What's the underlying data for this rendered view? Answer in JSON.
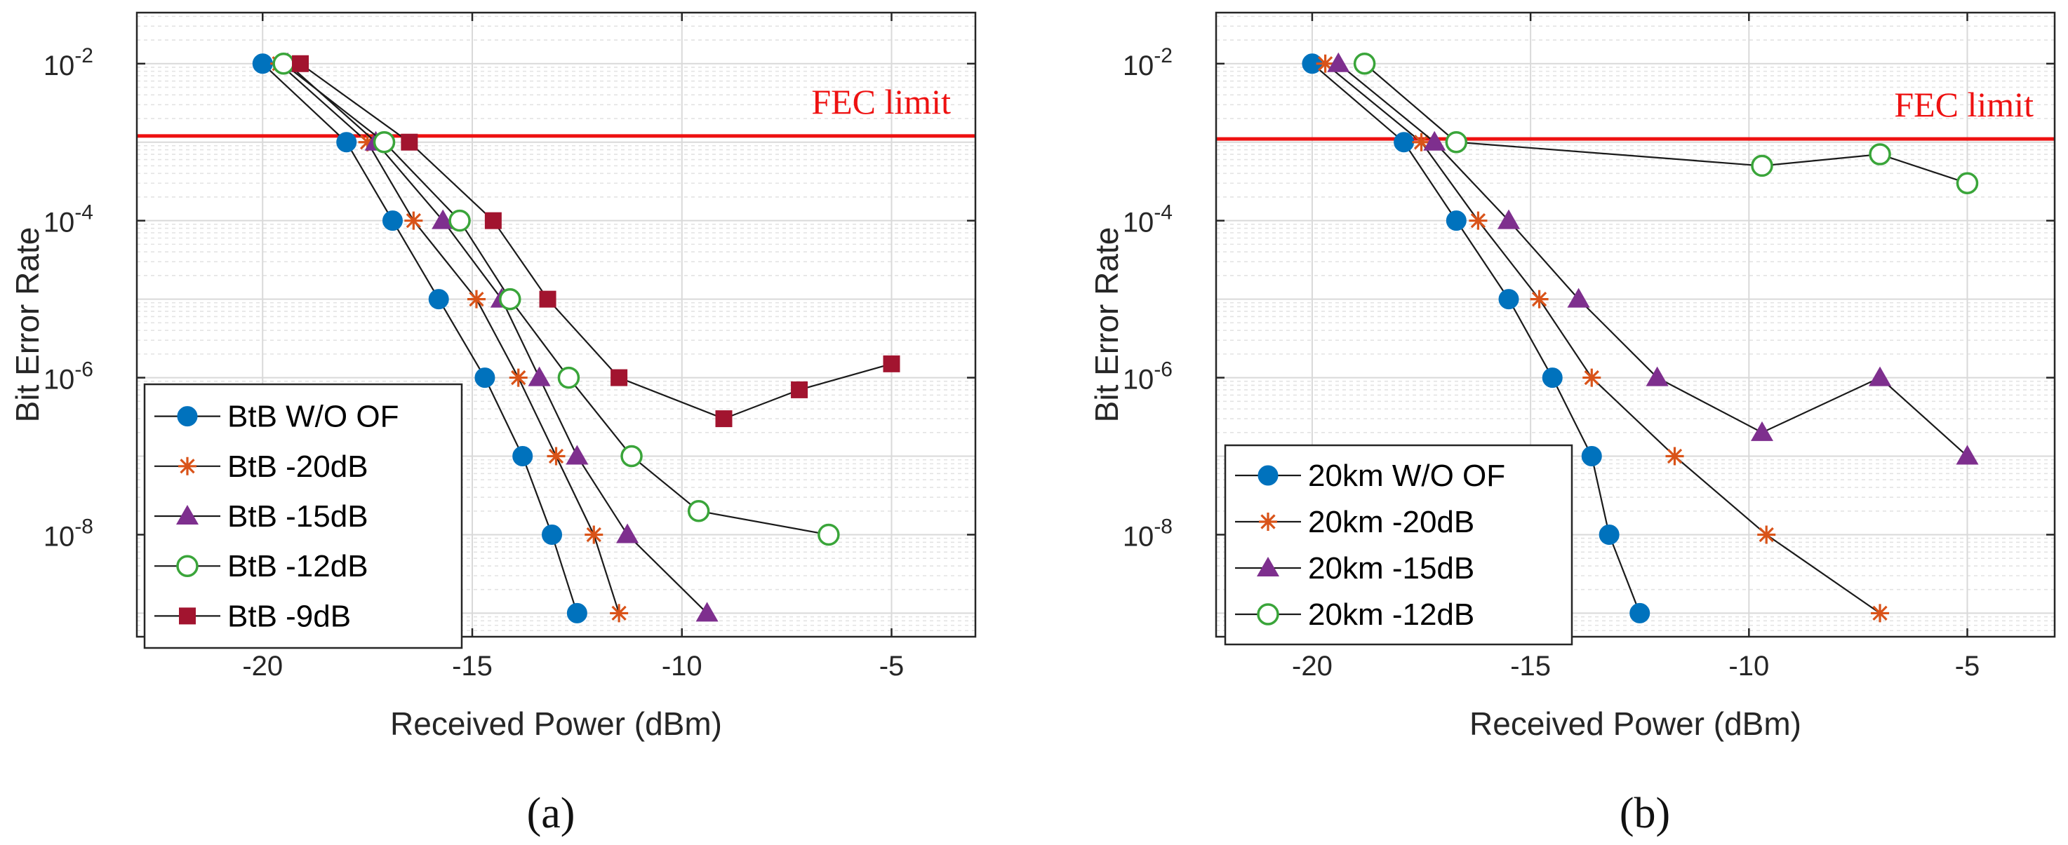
{
  "chart_data": [
    {
      "type": "line",
      "panel": "(a)",
      "xlabel": "Received Power (dBm)",
      "ylabel": "Bit Error Rate",
      "xlim": [
        -23,
        -3
      ],
      "ylim_log10": [
        -9.3,
        -1.35
      ],
      "xticks": [
        -20,
        -15,
        -10,
        -5
      ],
      "xtick_labels": [
        "-20",
        "-15",
        "-10",
        "-5"
      ],
      "yticks_exp": [
        -8,
        -6,
        -4,
        -2
      ],
      "ytick_labels": [
        {
          "base": "10",
          "exp": "-8"
        },
        {
          "base": "10",
          "exp": "-6"
        },
        {
          "base": "10",
          "exp": "-4"
        },
        {
          "base": "10",
          "exp": "-2"
        }
      ],
      "grid": true,
      "fec_limit": {
        "label": "FEC limit",
        "value": 0.0012
      },
      "legend_position": "bottom-left",
      "series": [
        {
          "name": "BtB W/O OF",
          "marker": "circle-filled",
          "color": "#0072BD",
          "x": [
            -20,
            -18,
            -16.9,
            -15.8,
            -14.7,
            -13.8,
            -13.1,
            -12.5
          ],
          "y": [
            0.01,
            0.001,
            0.0001,
            1e-05,
            1e-06,
            1e-07,
            1e-08,
            1e-09
          ]
        },
        {
          "name": "BtB -20dB",
          "marker": "asterisk",
          "color": "#D95319",
          "x": [
            -19.6,
            -17.5,
            -16.4,
            -14.9,
            -13.9,
            -13,
            -12.1,
            -11.5
          ],
          "y": [
            0.01,
            0.001,
            0.0001,
            1e-05,
            1e-06,
            1e-07,
            1e-08,
            1e-09
          ]
        },
        {
          "name": "BtB -15dB",
          "marker": "triangle-filled",
          "color": "#7E2F8E",
          "x": [
            -19.4,
            -17.3,
            -15.7,
            -14.3,
            -13.4,
            -12.5,
            -11.3,
            -9.4
          ],
          "y": [
            0.01,
            0.001,
            0.0001,
            1e-05,
            1e-06,
            1e-07,
            1e-08,
            1e-09
          ]
        },
        {
          "name": "BtB -12dB",
          "marker": "circle-open",
          "color": "#3AA53A",
          "x": [
            -19.5,
            -17.1,
            -15.3,
            -14.1,
            -12.7,
            -11.2,
            -9.6,
            -6.5
          ],
          "y": [
            0.01,
            0.001,
            0.0001,
            1e-05,
            1e-06,
            1e-07,
            2e-08,
            1e-08
          ]
        },
        {
          "name": "BtB -9dB",
          "marker": "square-filled",
          "color": "#A2142F",
          "x": [
            -19.1,
            -16.5,
            -14.5,
            -13.2,
            -11.5,
            -9,
            -7.2,
            -5
          ],
          "y": [
            0.01,
            0.001,
            0.0001,
            1e-05,
            1e-06,
            3e-07,
            7e-07,
            1.5e-06
          ]
        }
      ]
    },
    {
      "type": "line",
      "panel": "(b)",
      "xlabel": "Received Power (dBm)",
      "ylabel": "Bit Error Rate",
      "xlim": [
        -22.2,
        -3
      ],
      "ylim_log10": [
        -9.3,
        -1.35
      ],
      "xticks": [
        -20,
        -15,
        -10,
        -5
      ],
      "xtick_labels": [
        "-20",
        "-15",
        "-10",
        "-5"
      ],
      "yticks_exp": [
        -8,
        -6,
        -4,
        -2
      ],
      "ytick_labels": [
        {
          "base": "10",
          "exp": "-8"
        },
        {
          "base": "10",
          "exp": "-6"
        },
        {
          "base": "10",
          "exp": "-4"
        },
        {
          "base": "10",
          "exp": "-2"
        }
      ],
      "grid": true,
      "fec_limit": {
        "label": "FEC limit",
        "value": 0.0011
      },
      "legend_position": "bottom-left",
      "series": [
        {
          "name": "20km W/O OF",
          "marker": "circle-filled",
          "color": "#0072BD",
          "x": [
            -20,
            -17.9,
            -16.7,
            -15.5,
            -14.5,
            -13.6,
            -13.2,
            -12.5
          ],
          "y": [
            0.01,
            0.001,
            0.0001,
            1e-05,
            1e-06,
            1e-07,
            1e-08,
            1e-09
          ]
        },
        {
          "name": "20km -20dB",
          "marker": "asterisk",
          "color": "#D95319",
          "x": [
            -19.7,
            -17.5,
            -16.2,
            -14.8,
            -13.6,
            -11.7,
            -9.6,
            -7
          ],
          "y": [
            0.01,
            0.001,
            0.0001,
            1e-05,
            1e-06,
            1e-07,
            1e-08,
            1e-09
          ]
        },
        {
          "name": "20km -15dB",
          "marker": "triangle-filled",
          "color": "#7E2F8E",
          "x": [
            -19.4,
            -17.2,
            -15.5,
            -13.9,
            -12.1,
            -9.7,
            -7,
            -5
          ],
          "y": [
            0.01,
            0.001,
            0.0001,
            1e-05,
            1e-06,
            2e-07,
            1e-06,
            1e-07
          ]
        },
        {
          "name": "20km -12dB",
          "marker": "circle-open",
          "color": "#3AA53A",
          "x": [
            -18.8,
            -16.7,
            -9.7,
            -7,
            -5
          ],
          "y": [
            0.01,
            0.001,
            0.0005,
            0.0007,
            0.0003
          ]
        }
      ]
    }
  ],
  "captions": [
    "(a)",
    "(b)"
  ]
}
